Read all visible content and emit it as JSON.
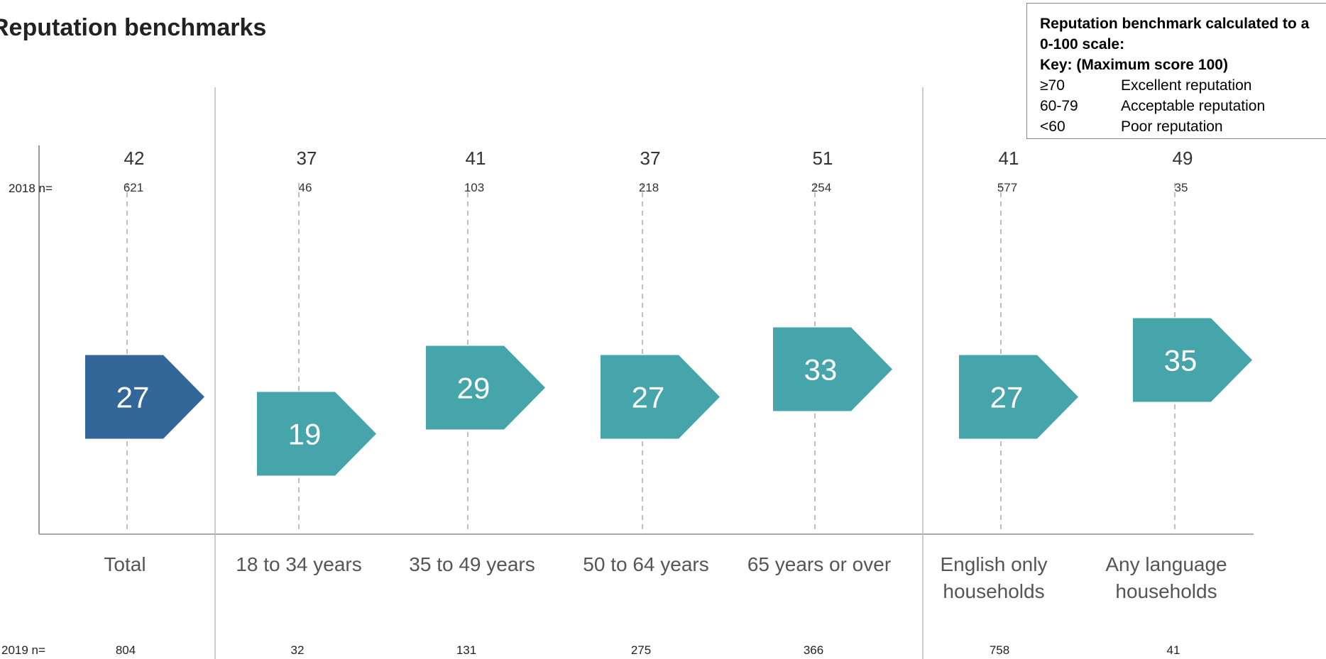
{
  "title": "Reputation benchmarks",
  "key": {
    "line1": "Reputation benchmark calculated to a",
    "line2": "0-100 scale:",
    "line3": "Key: (Maximum score 100)",
    "rows": [
      {
        "code": "≥70",
        "desc": "Excellent reputation"
      },
      {
        "code": "60-79",
        "desc": "Acceptable reputation"
      },
      {
        "code": "<60",
        "desc": "Poor reputation"
      }
    ]
  },
  "labels": {
    "n2018": "2018 n=",
    "n2019": "2019 n="
  },
  "colors": {
    "total": "#336699",
    "group": "#45A5AA"
  },
  "chart_data": {
    "type": "bar",
    "categories": [
      "Total",
      "18 to 34 years",
      "35 to 49 years",
      "50 to 64 years",
      "65 years or over",
      "English only households",
      "Any language households"
    ],
    "category_lines": [
      [
        "Total"
      ],
      [
        "18 to 34 years"
      ],
      [
        "35 to 49 years"
      ],
      [
        "50 to 64 years"
      ],
      [
        "65 years or over"
      ],
      [
        "English only",
        "households"
      ],
      [
        "Any language",
        "households"
      ]
    ],
    "series": [
      {
        "name": "2019",
        "values": [
          27,
          19,
          29,
          27,
          33,
          27,
          35
        ]
      },
      {
        "name": "2018",
        "values": [
          42,
          37,
          41,
          37,
          51,
          41,
          49
        ]
      }
    ],
    "n_2018": [
      621,
      46,
      103,
      218,
      254,
      577,
      35
    ],
    "n_2019": [
      804,
      32,
      131,
      275,
      366,
      758,
      41
    ],
    "ylim": [
      10,
      50
    ],
    "grid": false
  }
}
